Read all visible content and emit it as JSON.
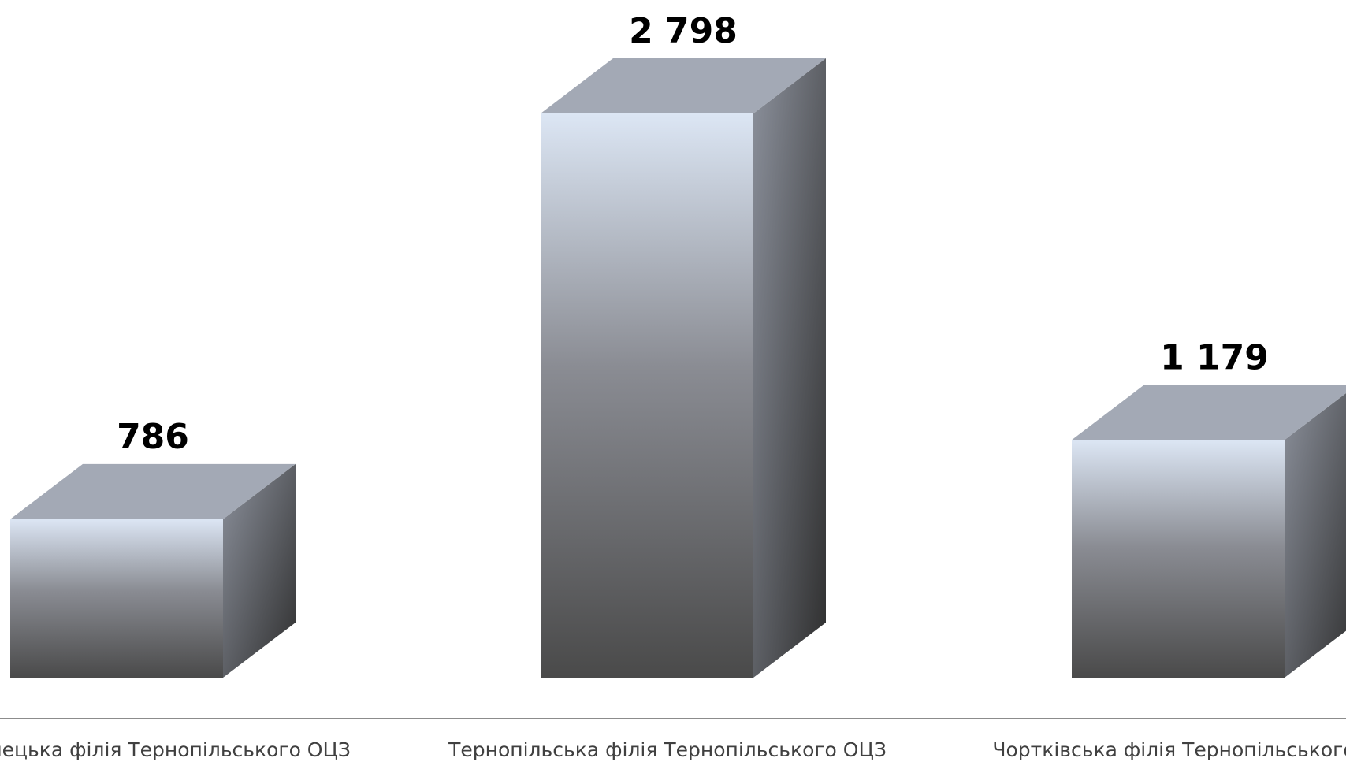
{
  "chart_data": {
    "type": "bar",
    "style": "3d-column",
    "categories": [
      "Кременецька філія Тернопільського ОЦЗ",
      "Тернопільська філія Тернопільського ОЦЗ",
      "Чортківська філія Тернопільського ОЦЗ"
    ],
    "values": [
      786,
      2798,
      1179
    ],
    "value_labels": [
      "786",
      "2 798",
      "1 179"
    ],
    "ylim": [
      0,
      2798
    ],
    "grid": false,
    "legend": "none",
    "colors": {
      "front_top": "#dce6f4",
      "front_mid": "#8a8c93",
      "front_bottom": "#4a4a4a",
      "top_face": "#a3a9b5",
      "side_top": "#8c919c",
      "side_bottom": "#2e2e2e",
      "axis_line": "#8c8c8c"
    }
  }
}
